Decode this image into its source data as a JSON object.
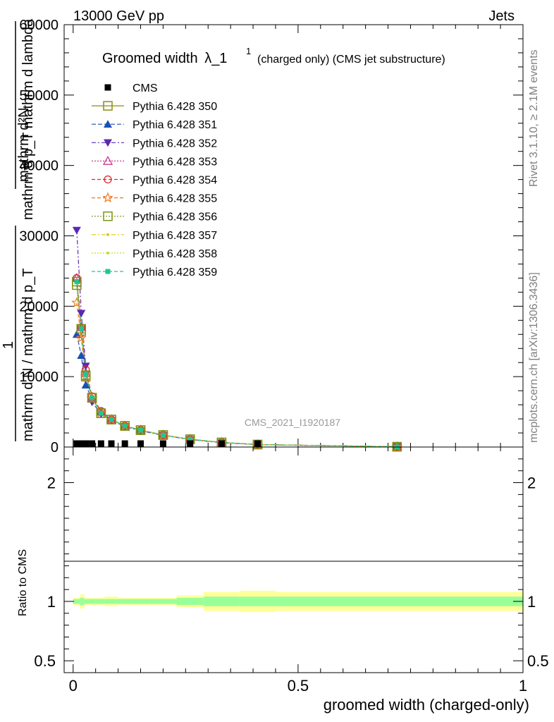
{
  "header": {
    "left": "13000 GeV pp",
    "right": "Jets"
  },
  "side": {
    "rivet": "Rivet 3.1.10, ≥ 2.1M events",
    "mcplots": "mcplots.cern.ch [arXiv:1306.3436]"
  },
  "chart_data": {
    "type": "line",
    "title": "Groomed width",
    "title_symbol": "λ_1",
    "title_sup": "1",
    "title_suffix": "(charged only) (CMS jet substructure)",
    "watermark": "CMS_2021_I1920187",
    "xlabel": "groomed width (charged-only)",
    "ylabel_top_numer": "mathrm d²N",
    "ylabel_top_denom": "mathrm d p_T mathrm d lambda",
    "ylabel_top_sub": "T",
    "ylabel_one": "1",
    "ylabel_bottom": "mathrm d N / mathrm d p_T",
    "ylabel_bottom_sub": "T",
    "ratio_ylabel": "Ratio to CMS",
    "xlim": [
      -0.02,
      1.0
    ],
    "ylim": [
      0,
      60000
    ],
    "ratio_ylim": [
      0.4,
      2.3
    ],
    "x_ticks": [
      0,
      0.5,
      1
    ],
    "x_tick_labels": [
      "0",
      "0.5",
      "1"
    ],
    "y_ticks": [
      0,
      10000,
      20000,
      30000,
      40000,
      50000,
      60000
    ],
    "y_tick_labels": [
      "0",
      "10000",
      "20000",
      "30000",
      "40000",
      "50000",
      "60000"
    ],
    "ratio_ticks": [
      0.5,
      1,
      2
    ],
    "ratio_tick_labels": [
      "0.5",
      "1",
      "2"
    ],
    "legend_position": "top-left",
    "x": [
      0.008,
      0.018,
      0.028,
      0.042,
      0.062,
      0.085,
      0.115,
      0.15,
      0.2,
      0.26,
      0.33,
      0.41,
      0.72
    ],
    "bins": [
      [
        0.0,
        0.015
      ],
      [
        0.015,
        0.025
      ],
      [
        0.025,
        0.035
      ],
      [
        0.035,
        0.05
      ],
      [
        0.05,
        0.07
      ],
      [
        0.07,
        0.1
      ],
      [
        0.1,
        0.13
      ],
      [
        0.13,
        0.17
      ],
      [
        0.17,
        0.23
      ],
      [
        0.23,
        0.29
      ],
      [
        0.29,
        0.37
      ],
      [
        0.37,
        0.45
      ],
      [
        0.45,
        1.0
      ]
    ],
    "ratio_band_inner": [
      0.02,
      0.03,
      0.02,
      0.02,
      0.02,
      0.02,
      0.02,
      0.02,
      0.02,
      0.03,
      0.04,
      0.04,
      0.04
    ],
    "ratio_band_outer": [
      0.03,
      0.06,
      0.03,
      0.03,
      0.03,
      0.04,
      0.03,
      0.03,
      0.03,
      0.05,
      0.08,
      0.09,
      0.08
    ],
    "cms": [
      300,
      300,
      250,
      250,
      200,
      200,
      180,
      150,
      120,
      80,
      50,
      30,
      10
    ],
    "series": [
      {
        "name": "CMS",
        "color": "#000000",
        "marker": "square-filled",
        "dash": "none",
        "values": [
          300,
          300,
          250,
          250,
          200,
          200,
          180,
          150,
          120,
          80,
          50,
          30,
          10
        ]
      },
      {
        "name": "Pythia 6.428 350",
        "color": "#8c8c14",
        "marker": "square-open",
        "dash": "solid",
        "values": [
          23000,
          16500,
          10000,
          7000,
          4800,
          3900,
          3000,
          2400,
          1700,
          1100,
          650,
          350,
          40
        ]
      },
      {
        "name": "Pythia 6.428 351",
        "color": "#1a50b4",
        "marker": "triangle-up-filled",
        "dash": "6,3",
        "values": [
          16000,
          13000,
          8800,
          6800,
          5000,
          3900,
          3000,
          2400,
          1700,
          1100,
          650,
          350,
          40
        ]
      },
      {
        "name": "Pythia 6.428 352",
        "color": "#5a28b4",
        "marker": "triangle-down-filled",
        "dash": "6,3,2,3",
        "values": [
          30800,
          19000,
          11500,
          6400,
          4700,
          3800,
          2900,
          2300,
          1650,
          1050,
          600,
          330,
          40
        ]
      },
      {
        "name": "Pythia 6.428 353",
        "color": "#c83c8c",
        "marker": "triangle-up-open",
        "dash": "2,2",
        "values": [
          24000,
          17000,
          10500,
          6900,
          5000,
          3900,
          3000,
          2400,
          1700,
          1100,
          650,
          350,
          40
        ]
      },
      {
        "name": "Pythia 6.428 354",
        "color": "#dc2828",
        "marker": "circle-open",
        "dash": "5,3",
        "values": [
          24000,
          17000,
          11000,
          7200,
          5100,
          3900,
          3000,
          2400,
          1700,
          1100,
          650,
          350,
          40
        ]
      },
      {
        "name": "Pythia 6.428 355",
        "color": "#f0781e",
        "marker": "star-open",
        "dash": "5,3",
        "values": [
          20500,
          15500,
          10000,
          6900,
          4900,
          3900,
          3000,
          2400,
          1700,
          1100,
          650,
          350,
          40
        ]
      },
      {
        "name": "Pythia 6.428 356",
        "color": "#789614",
        "marker": "square-open",
        "dash": "2,2",
        "values": [
          23500,
          16800,
          10200,
          7000,
          4800,
          3900,
          3000,
          2400,
          1700,
          1100,
          650,
          350,
          40
        ]
      },
      {
        "name": "Pythia 6.428 357",
        "color": "#dcc814",
        "marker": "small-dot",
        "dash": "6,3,2,3",
        "values": [
          23500,
          16800,
          10200,
          7000,
          4800,
          3900,
          3000,
          2400,
          1700,
          1100,
          650,
          350,
          40
        ]
      },
      {
        "name": "Pythia 6.428 358",
        "color": "#c8dc28",
        "marker": "small-dot",
        "dash": "2,2",
        "values": [
          23500,
          16800,
          10200,
          7000,
          4800,
          3900,
          3000,
          2400,
          1700,
          1100,
          650,
          350,
          40
        ]
      },
      {
        "name": "Pythia 6.428 359",
        "color": "#1ec88c",
        "marker": "square-filled-small",
        "dash": "5,3",
        "values": [
          23500,
          16800,
          10300,
          7000,
          4800,
          3900,
          3000,
          2400,
          1700,
          1100,
          650,
          350,
          40
        ]
      }
    ]
  }
}
